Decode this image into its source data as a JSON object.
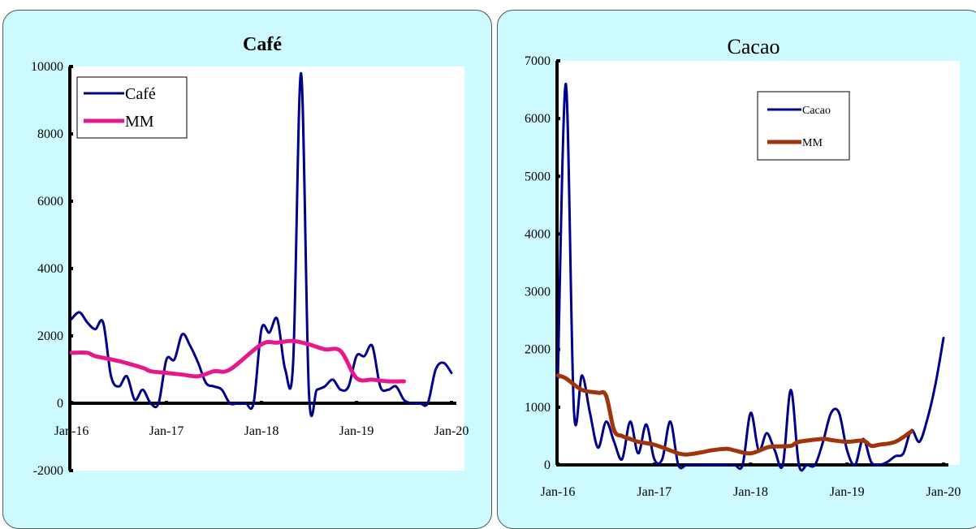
{
  "chart_data": [
    {
      "type": "line",
      "title": "Café",
      "xlabel": "",
      "ylabel": "",
      "x_ticks": [
        "Jan-16",
        "Jan-17",
        "Jan-18",
        "Jan-19",
        "Jan-20"
      ],
      "y_ticks": [
        "-2000",
        "0",
        "2000",
        "4000",
        "6000",
        "8000",
        "10000"
      ],
      "ylim": [
        -2000,
        10000
      ],
      "xlim": [
        0,
        48
      ],
      "grid": false,
      "legend_position": "top-left",
      "series": [
        {
          "name": "Café",
          "color": "#00008b",
          "x": [
            0,
            1,
            2,
            3,
            4,
            5,
            6,
            7,
            8,
            9,
            10,
            11,
            12,
            13,
            14,
            15,
            16,
            17,
            18,
            19,
            20,
            21,
            22,
            23,
            24,
            25,
            26,
            27,
            28,
            29,
            30,
            31,
            32,
            33,
            34,
            35,
            36,
            37,
            38,
            39,
            40,
            41,
            42,
            43,
            44,
            45,
            46,
            47,
            48
          ],
          "values": [
            2500,
            2700,
            2400,
            2200,
            2400,
            800,
            500,
            800,
            100,
            400,
            0,
            0,
            1300,
            1300,
            2050,
            1700,
            1200,
            600,
            500,
            400,
            0,
            0,
            0,
            0,
            2200,
            2100,
            2500,
            1000,
            1200,
            9800,
            300,
            400,
            500,
            700,
            400,
            500,
            1400,
            1400,
            1700,
            500,
            400,
            500,
            100,
            0,
            0,
            0,
            1000,
            1200,
            900
          ]
        },
        {
          "name": "MM",
          "color": "#e6198c",
          "x": [
            0,
            2,
            3,
            6,
            9,
            10,
            12,
            14,
            16,
            18,
            20,
            24,
            26,
            28,
            30,
            32,
            34,
            36,
            38,
            40,
            42
          ],
          "values": [
            1500,
            1500,
            1400,
            1250,
            1050,
            950,
            900,
            850,
            800,
            950,
            1000,
            1750,
            1800,
            1850,
            1750,
            1600,
            1550,
            750,
            700,
            650,
            650
          ]
        }
      ]
    },
    {
      "type": "line",
      "title": "Cacao",
      "xlabel": "",
      "ylabel": "",
      "x_ticks": [
        "Jan-16",
        "Jan-17",
        "Jan-18",
        "Jan-19",
        "Jan-20"
      ],
      "y_ticks": [
        "0",
        "1000",
        "2000",
        "3000",
        "4000",
        "5000",
        "6000",
        "7000"
      ],
      "ylim": [
        0,
        7000
      ],
      "xlim": [
        0,
        48
      ],
      "grid": false,
      "legend_position": "top-right",
      "series": [
        {
          "name": "Cacao",
          "color": "#00008b",
          "x": [
            0,
            1,
            2,
            3,
            4,
            5,
            6,
            7,
            8,
            9,
            10,
            11,
            12,
            13,
            14,
            15,
            16,
            17,
            18,
            19,
            20,
            21,
            22,
            23,
            24,
            25,
            26,
            27,
            28,
            29,
            30,
            31,
            32,
            33,
            34,
            35,
            36,
            37,
            38,
            39,
            40,
            41,
            42,
            43,
            44,
            45,
            46,
            47,
            48
          ],
          "values": [
            1500,
            6600,
            950,
            1550,
            900,
            300,
            750,
            400,
            100,
            750,
            200,
            700,
            100,
            100,
            750,
            0,
            0,
            0,
            0,
            0,
            0,
            0,
            0,
            0,
            900,
            250,
            550,
            250,
            0,
            1300,
            0,
            0,
            0,
            400,
            900,
            900,
            250,
            0,
            450,
            50,
            0,
            50,
            150,
            200,
            600,
            400,
            800,
            1400,
            2200
          ]
        },
        {
          "name": "MM",
          "color": "#a0340a",
          "x": [
            0,
            1,
            3,
            5,
            6,
            7,
            8,
            9,
            10,
            12,
            14,
            15,
            16,
            18,
            19,
            21,
            22,
            24,
            26,
            27,
            29,
            30,
            33,
            34,
            36,
            38,
            39,
            40,
            42,
            44
          ],
          "values": [
            1550,
            1500,
            1300,
            1250,
            1200,
            600,
            500,
            450,
            400,
            350,
            250,
            200,
            180,
            220,
            250,
            280,
            250,
            200,
            300,
            320,
            330,
            400,
            450,
            430,
            400,
            420,
            330,
            350,
            400,
            580
          ]
        }
      ]
    }
  ]
}
